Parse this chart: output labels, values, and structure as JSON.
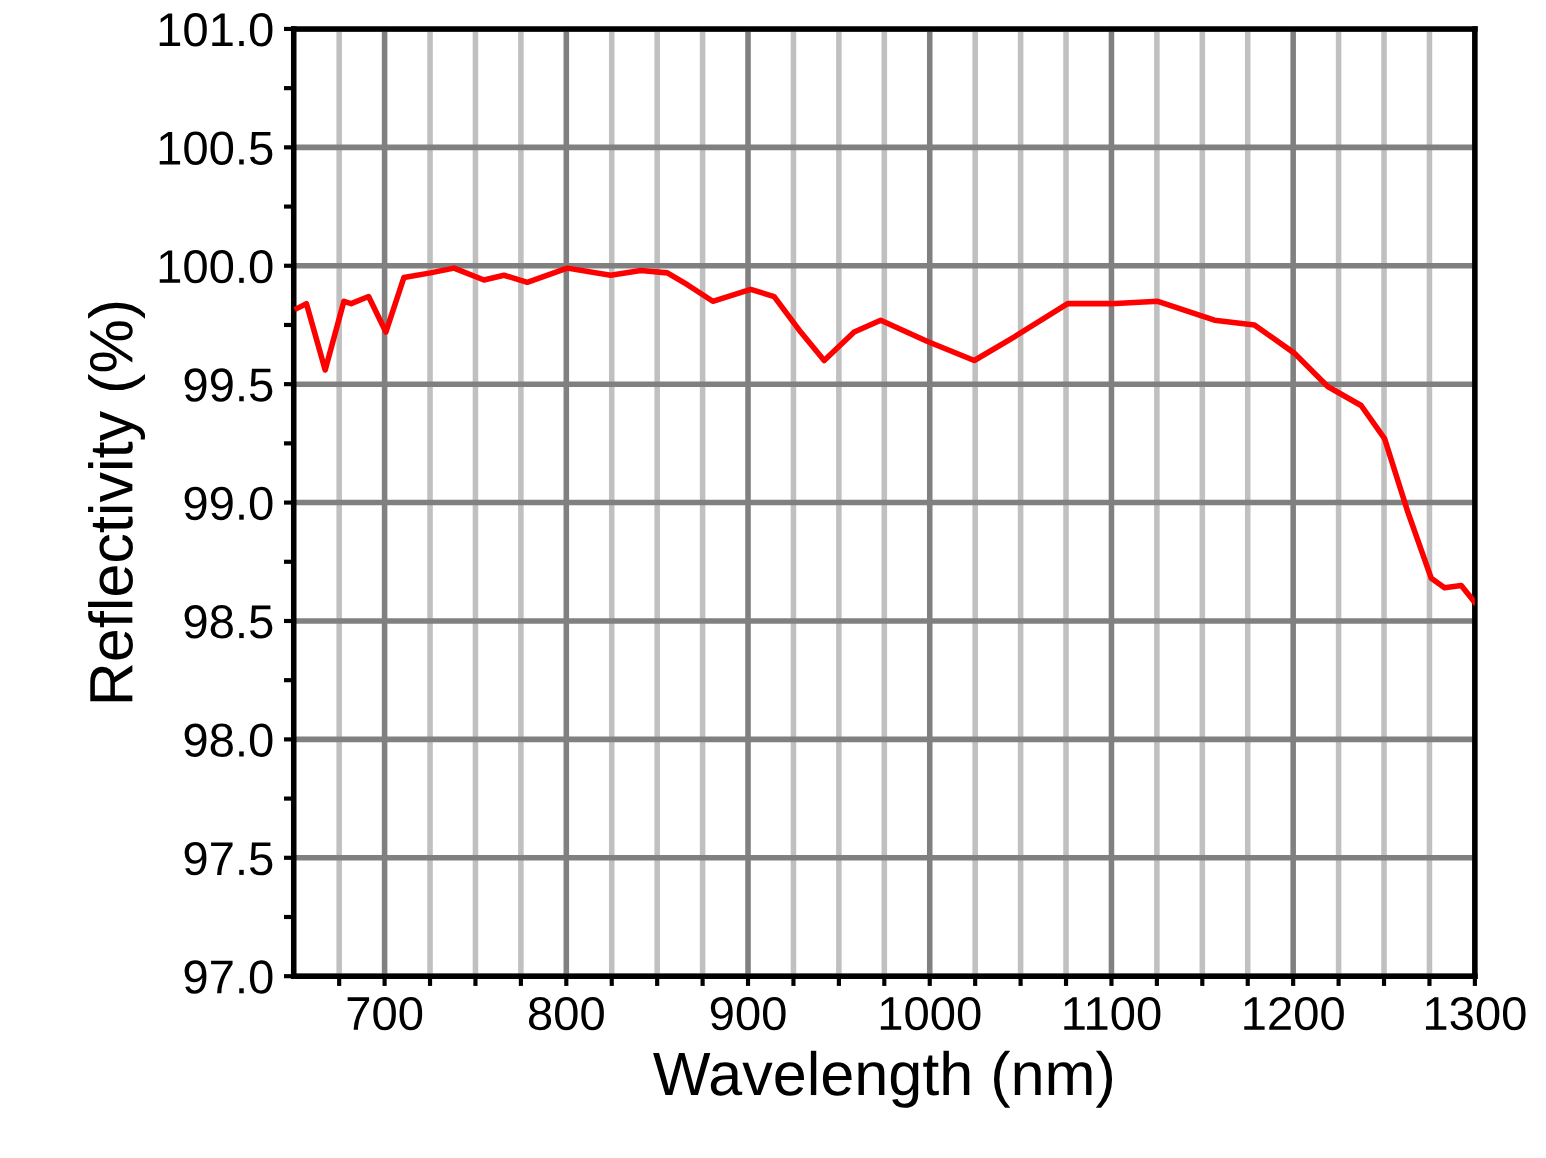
{
  "chart_data": {
    "type": "line",
    "xlabel": "Wavelength (nm)",
    "ylabel": "Reflectivity (%)",
    "xlim": [
      650,
      1300
    ],
    "ylim": [
      97.0,
      101.0
    ],
    "xticks": [
      {
        "value": 675,
        "label": null
      },
      700,
      {
        "value": 725,
        "label": null
      },
      {
        "value": 750,
        "label": null
      },
      {
        "value": 775,
        "label": null
      },
      800,
      {
        "value": 825,
        "label": null
      },
      {
        "value": 850,
        "label": null
      },
      {
        "value": 875,
        "label": null
      },
      900,
      {
        "value": 925,
        "label": null
      },
      {
        "value": 950,
        "label": null
      },
      {
        "value": 975,
        "label": null
      },
      1000,
      {
        "value": 1025,
        "label": null
      },
      {
        "value": 1050,
        "label": null
      },
      {
        "value": 1075,
        "label": null
      },
      1100,
      {
        "value": 1125,
        "label": null
      },
      {
        "value": 1150,
        "label": null
      },
      {
        "value": 1175,
        "label": null
      },
      1200,
      {
        "value": 1225,
        "label": null
      },
      {
        "value": 1250,
        "label": null
      },
      {
        "value": 1275,
        "label": null
      },
      1300
    ],
    "yticks": [
      {
        "value": 97.0,
        "label": "97.0"
      },
      {
        "value": 97.25,
        "label": null
      },
      {
        "value": 97.5,
        "label": "97.5"
      },
      {
        "value": 97.75,
        "label": null
      },
      {
        "value": 98.0,
        "label": "98.0"
      },
      {
        "value": 98.25,
        "label": null
      },
      {
        "value": 98.5,
        "label": "98.5"
      },
      {
        "value": 98.75,
        "label": null
      },
      {
        "value": 99.0,
        "label": "99.0"
      },
      {
        "value": 99.25,
        "label": null
      },
      {
        "value": 99.5,
        "label": "99.5"
      },
      {
        "value": 99.75,
        "label": null
      },
      {
        "value": 100.0,
        "label": "100.0"
      },
      {
        "value": 100.25,
        "label": null
      },
      {
        "value": 100.5,
        "label": "100.5"
      },
      {
        "value": 100.75,
        "label": null
      },
      {
        "value": 101.0,
        "label": "101.0"
      }
    ],
    "grid": true,
    "marker": "none",
    "line_style": "solid",
    "series": [
      {
        "color": "#ff0000",
        "x": [
          651.9,
          657,
          667.3,
          677.6,
          681.6,
          691.2,
          700.7,
          710.6,
          725.3,
          738.2,
          754.7,
          765.7,
          778.5,
          800.5,
          824.4,
          841,
          855.6,
          866.6,
          880.6,
          901.5,
          914.4,
          929,
          941.9,
          958.4,
          973,
          998.8,
          1024.5,
          1046.6,
          1075.9,
          1099.8,
          1125.5,
          1156.7,
          1178.7,
          1200.8,
          1219,
          1237.4,
          1250.3,
          1263.1,
          1276,
          1283.3,
          1292.5,
          1299.8
        ],
        "values": [
          99.82,
          99.84,
          99.56,
          99.85,
          99.84,
          99.87,
          99.72,
          99.95,
          99.97,
          99.99,
          99.94,
          99.96,
          99.93,
          99.99,
          99.96,
          99.98,
          99.97,
          99.92,
          99.85,
          99.9,
          99.87,
          99.72,
          99.6,
          99.72,
          99.77,
          99.68,
          99.6,
          99.7,
          99.84,
          99.84,
          99.85,
          99.77,
          99.75,
          99.63,
          99.49,
          99.41,
          99.27,
          98.96,
          98.68,
          98.64,
          98.65,
          98.58
        ]
      }
    ]
  }
}
